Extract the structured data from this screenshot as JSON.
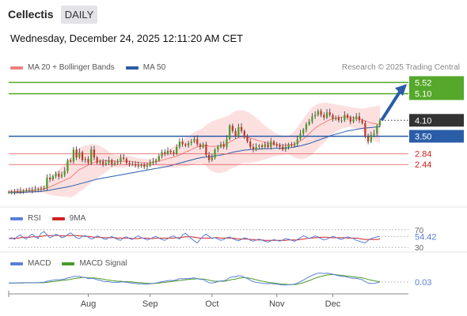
{
  "header": {
    "symbol": "Cellectis",
    "interval": "DAILY",
    "timestamp": "Wednesday, December 24, 2025 12:11:20 AM CET",
    "credit": "Research © 2025 Trading Central"
  },
  "colors": {
    "bollinger": "#f08080",
    "bollinger_fill": "#fbd6d6",
    "ma50": "#2a5da8",
    "resistance": "#55a82a",
    "pivot": "#2a5da8",
    "support": "#e05050",
    "candle_up": "#4a9a2a",
    "candle_down": "#c0392b",
    "rsi": "#5a7fd8",
    "rsi_ma": "#d02020",
    "macd": "#5a7fd8",
    "macd_signal": "#4a9a2a",
    "arrow": "#2a5da8"
  },
  "chart_data": [
    {
      "type": "candlestick",
      "legend": [
        {
          "label": "MA 20 + Bollinger Bands",
          "color": "#f08080"
        },
        {
          "label": "MA 50",
          "color": "#2a5da8"
        }
      ],
      "ylim": [
        1.2,
        5.8
      ],
      "x_ticks": [
        "Aug",
        "Sep",
        "Oct",
        "Nov",
        "Dec"
      ],
      "x_tick_index": [
        27,
        48,
        69,
        91,
        110
      ],
      "last_price": "4.10",
      "levels": [
        {
          "value": 5.52,
          "label": "5.52",
          "kind": "resistance"
        },
        {
          "value": 5.1,
          "label": "5.10",
          "kind": "resistance"
        },
        {
          "value": 3.5,
          "label": "3.50",
          "kind": "pivot"
        },
        {
          "value": 2.84,
          "label": "2.84",
          "kind": "support"
        },
        {
          "value": 2.44,
          "label": "2.44",
          "kind": "support"
        }
      ],
      "close": [
        1.4,
        1.4,
        1.42,
        1.41,
        1.44,
        1.45,
        1.47,
        1.48,
        1.46,
        1.5,
        1.52,
        1.55,
        1.53,
        1.95,
        1.88,
        2.0,
        2.1,
        1.98,
        2.05,
        2.2,
        2.6,
        2.55,
        3.0,
        2.7,
        2.9,
        2.6,
        2.65,
        2.5,
        3.0,
        2.7,
        2.5,
        2.55,
        2.45,
        2.5,
        2.6,
        2.45,
        2.5,
        2.55,
        2.7,
        2.65,
        2.5,
        2.45,
        2.45,
        2.4,
        2.38,
        2.42,
        2.35,
        2.4,
        2.5,
        2.55,
        2.6,
        2.75,
        2.9,
        2.85,
        2.95,
        2.9,
        2.85,
        3.1,
        3.3,
        3.2,
        3.15,
        3.25,
        3.3,
        3.4,
        3.2,
        3.1,
        3.2,
        2.8,
        2.6,
        2.7,
        3.0,
        3.1,
        3.2,
        3.1,
        3.4,
        3.9,
        3.7,
        3.5,
        3.85,
        3.7,
        3.5,
        3.3,
        3.1,
        3.0,
        3.1,
        3.15,
        3.1,
        3.2,
        3.1,
        3.3,
        3.2,
        3.15,
        3.1,
        3.0,
        3.1,
        3.2,
        3.15,
        3.2,
        3.4,
        3.6,
        3.75,
        3.95,
        4.05,
        4.25,
        4.3,
        4.45,
        4.3,
        4.2,
        4.4,
        4.3,
        4.15,
        4.2,
        4.1,
        4.1,
        4.3,
        4.2,
        4.05,
        4.15,
        4.25,
        4.1,
        4.0,
        3.5,
        3.3,
        3.55,
        3.6,
        3.9,
        4.1
      ],
      "ma20": [
        1.42,
        1.42,
        1.42,
        1.43,
        1.43,
        1.44,
        1.45,
        1.46,
        1.47,
        1.48,
        1.49,
        1.5,
        1.52,
        1.55,
        1.6,
        1.65,
        1.7,
        1.75,
        1.8,
        1.85,
        1.9,
        1.95,
        2.05,
        2.15,
        2.25,
        2.3,
        2.36,
        2.42,
        2.48,
        2.52,
        2.55,
        2.57,
        2.58,
        2.58,
        2.58,
        2.58,
        2.57,
        2.55,
        2.56,
        2.56,
        2.56,
        2.56,
        2.55,
        2.53,
        2.52,
        2.51,
        2.51,
        2.5,
        2.51,
        2.52,
        2.54,
        2.57,
        2.6,
        2.63,
        2.66,
        2.69,
        2.72,
        2.75,
        2.8,
        2.85,
        2.9,
        2.95,
        3.0,
        3.05,
        3.1,
        3.12,
        3.14,
        3.15,
        3.13,
        3.12,
        3.12,
        3.13,
        3.15,
        3.18,
        3.22,
        3.28,
        3.35,
        3.4,
        3.45,
        3.48,
        3.48,
        3.46,
        3.43,
        3.4,
        3.37,
        3.33,
        3.3,
        3.27,
        3.24,
        3.22,
        3.2,
        3.18,
        3.17,
        3.16,
        3.16,
        3.17,
        3.18,
        3.2,
        3.25,
        3.32,
        3.4,
        3.5,
        3.6,
        3.7,
        3.8,
        3.88,
        3.95,
        4.0,
        4.07,
        4.12,
        4.16,
        4.18,
        4.2,
        4.22,
        4.23,
        4.23,
        4.22,
        4.2,
        4.18,
        4.16,
        4.12,
        4.08,
        4.04,
        4.0,
        3.98,
        3.96,
        3.95
      ],
      "bb_upper": [
        1.5,
        1.5,
        1.5,
        1.52,
        1.52,
        1.54,
        1.55,
        1.56,
        1.58,
        1.59,
        1.61,
        1.62,
        1.64,
        1.78,
        1.9,
        2.02,
        2.14,
        2.25,
        2.36,
        2.46,
        2.58,
        2.7,
        2.85,
        2.98,
        3.08,
        3.12,
        3.15,
        3.18,
        3.2,
        3.2,
        3.18,
        3.14,
        3.08,
        3.0,
        2.92,
        2.85,
        2.8,
        2.78,
        2.8,
        2.8,
        2.78,
        2.76,
        2.74,
        2.7,
        2.68,
        2.66,
        2.65,
        2.64,
        2.65,
        2.66,
        2.7,
        2.76,
        2.84,
        2.92,
        3.0,
        3.06,
        3.12,
        3.18,
        3.26,
        3.34,
        3.42,
        3.5,
        3.58,
        3.66,
        3.72,
        3.76,
        3.82,
        3.92,
        4.0,
        4.06,
        4.1,
        4.14,
        4.18,
        4.22,
        4.26,
        4.3,
        4.4,
        4.45,
        4.48,
        4.48,
        4.46,
        4.42,
        4.36,
        4.28,
        4.2,
        4.1,
        4.0,
        3.9,
        3.82,
        3.74,
        3.66,
        3.6,
        3.56,
        3.52,
        3.5,
        3.52,
        3.6,
        3.7,
        3.84,
        4.0,
        4.16,
        4.32,
        4.46,
        4.58,
        4.66,
        4.72,
        4.75,
        4.76,
        4.76,
        4.74,
        4.72,
        4.7,
        4.68,
        4.66,
        4.64,
        4.62,
        4.6,
        4.58,
        4.56,
        4.55,
        4.54,
        4.56,
        4.58,
        4.6,
        4.62,
        4.64,
        4.65
      ],
      "bb_lower": [
        1.34,
        1.34,
        1.34,
        1.34,
        1.34,
        1.34,
        1.35,
        1.36,
        1.36,
        1.37,
        1.37,
        1.38,
        1.4,
        1.32,
        1.3,
        1.28,
        1.26,
        1.25,
        1.24,
        1.24,
        1.22,
        1.2,
        1.25,
        1.32,
        1.42,
        1.48,
        1.57,
        1.66,
        1.76,
        1.84,
        1.92,
        2.0,
        2.08,
        2.16,
        2.24,
        2.31,
        2.34,
        2.32,
        2.32,
        2.32,
        2.34,
        2.36,
        2.36,
        2.36,
        2.36,
        2.36,
        2.37,
        2.36,
        2.37,
        2.38,
        2.38,
        2.38,
        2.36,
        2.34,
        2.32,
        2.32,
        2.32,
        2.32,
        2.34,
        2.36,
        2.38,
        2.4,
        2.42,
        2.44,
        2.48,
        2.48,
        2.46,
        2.38,
        2.26,
        2.18,
        2.14,
        2.12,
        2.12,
        2.14,
        2.18,
        2.26,
        2.3,
        2.35,
        2.42,
        2.48,
        2.5,
        2.5,
        2.5,
        2.52,
        2.54,
        2.56,
        2.6,
        2.64,
        2.66,
        2.7,
        2.74,
        2.76,
        2.78,
        2.8,
        2.82,
        2.82,
        2.76,
        2.7,
        2.66,
        2.64,
        2.64,
        2.68,
        2.74,
        2.82,
        2.94,
        3.04,
        3.15,
        3.24,
        3.38,
        3.5,
        3.6,
        3.66,
        3.72,
        3.78,
        3.82,
        3.84,
        3.84,
        3.82,
        3.8,
        3.77,
        3.7,
        3.6,
        3.5,
        3.4,
        3.34,
        3.28,
        3.25
      ],
      "ma50": [
        1.38,
        1.38,
        1.38,
        1.39,
        1.39,
        1.4,
        1.4,
        1.41,
        1.41,
        1.42,
        1.42,
        1.43,
        1.44,
        1.46,
        1.48,
        1.5,
        1.52,
        1.54,
        1.56,
        1.58,
        1.6,
        1.62,
        1.65,
        1.68,
        1.71,
        1.74,
        1.77,
        1.8,
        1.83,
        1.86,
        1.89,
        1.91,
        1.93,
        1.95,
        1.97,
        1.99,
        2.01,
        2.03,
        2.05,
        2.07,
        2.09,
        2.11,
        2.13,
        2.15,
        2.17,
        2.19,
        2.21,
        2.23,
        2.25,
        2.27,
        2.29,
        2.31,
        2.33,
        2.35,
        2.37,
        2.4,
        2.43,
        2.46,
        2.49,
        2.52,
        2.55,
        2.58,
        2.61,
        2.64,
        2.67,
        2.69,
        2.71,
        2.72,
        2.73,
        2.74,
        2.76,
        2.78,
        2.8,
        2.82,
        2.84,
        2.87,
        2.9,
        2.92,
        2.94,
        2.96,
        2.98,
        2.99,
        3.0,
        3.01,
        3.02,
        3.02,
        3.03,
        3.03,
        3.04,
        3.04,
        3.05,
        3.05,
        3.05,
        3.05,
        3.06,
        3.07,
        3.08,
        3.1,
        3.12,
        3.14,
        3.17,
        3.2,
        3.23,
        3.27,
        3.31,
        3.35,
        3.39,
        3.43,
        3.47,
        3.51,
        3.55,
        3.58,
        3.61,
        3.64,
        3.67,
        3.7,
        3.72,
        3.74,
        3.76,
        3.78,
        3.8,
        3.81,
        3.82,
        3.83,
        3.84,
        3.85,
        3.86
      ]
    },
    {
      "type": "line",
      "legend": [
        {
          "label": "RSI",
          "color": "#5a7fd8"
        },
        {
          "label": "9MA",
          "color": "#d02020"
        }
      ],
      "ylim": [
        25,
        75
      ],
      "levels": [
        {
          "value": 70,
          "label": "70"
        },
        {
          "value": 30,
          "label": "30"
        }
      ],
      "last_value": "54.42",
      "rsi": [
        50,
        52,
        48,
        55,
        58,
        52,
        49,
        56,
        60,
        54,
        50,
        62,
        66,
        58,
        52,
        55,
        60,
        57,
        52,
        54,
        59,
        63,
        58,
        52,
        50,
        55,
        57,
        53,
        49,
        51,
        56,
        54,
        50,
        48,
        52,
        55,
        51,
        48,
        46,
        52,
        54,
        50,
        48,
        53,
        56,
        52,
        50,
        47,
        49,
        53,
        55,
        51,
        48,
        46,
        50,
        54,
        56,
        52,
        49,
        58,
        62,
        56,
        50,
        45,
        40,
        48,
        56,
        60,
        55,
        50,
        52,
        49,
        46,
        48,
        52,
        54,
        50,
        47,
        45,
        48,
        52,
        50,
        46,
        44,
        47,
        49,
        46,
        44,
        42,
        45,
        48,
        46,
        44,
        47,
        50,
        49,
        46,
        44,
        48,
        52,
        56,
        54,
        50,
        53,
        56,
        54,
        50,
        47,
        49,
        52,
        55,
        53,
        50,
        48,
        51,
        54,
        52,
        50,
        46,
        44,
        42,
        40,
        46,
        50,
        52,
        54,
        54.42
      ],
      "rsi_ma": [
        50,
        50,
        51,
        51,
        52,
        53,
        53,
        53,
        54,
        54,
        54,
        55,
        56,
        57,
        57,
        57,
        57,
        57,
        56,
        56,
        57,
        57,
        57,
        57,
        56,
        56,
        55,
        55,
        54,
        53,
        53,
        53,
        52,
        52,
        52,
        52,
        52,
        51,
        51,
        51,
        51,
        51,
        50,
        50,
        50,
        51,
        51,
        51,
        50,
        50,
        51,
        51,
        51,
        51,
        51,
        51,
        51,
        52,
        52,
        53,
        54,
        54,
        54,
        53,
        52,
        51,
        51,
        51,
        51,
        51,
        52,
        52,
        51,
        51,
        51,
        51,
        51,
        50,
        49,
        49,
        49,
        49,
        48,
        48,
        47,
        47,
        47,
        46,
        46,
        46,
        46,
        46,
        46,
        46,
        46,
        47,
        47,
        47,
        47,
        48,
        49,
        50,
        51,
        51,
        52,
        52,
        53,
        53,
        53,
        52,
        52,
        52,
        52,
        52,
        52,
        51,
        51,
        51,
        51,
        50,
        49,
        48,
        48,
        48,
        48,
        48,
        49
      ]
    },
    {
      "type": "line",
      "legend": [
        {
          "label": "MACD",
          "color": "#5a7fd8"
        },
        {
          "label": "MACD Signal",
          "color": "#4a9a2a"
        }
      ],
      "ylim": [
        -0.25,
        0.35
      ],
      "last_value": "0.03",
      "macd": [
        0.0,
        0.0,
        0.0,
        0.0,
        0.01,
        0.01,
        0.01,
        0.01,
        0.01,
        0.01,
        0.01,
        0.02,
        0.02,
        0.05,
        0.06,
        0.08,
        0.09,
        0.09,
        0.1,
        0.11,
        0.14,
        0.15,
        0.18,
        0.18,
        0.18,
        0.16,
        0.15,
        0.12,
        0.13,
        0.12,
        0.09,
        0.08,
        0.05,
        0.04,
        0.04,
        0.02,
        0.02,
        0.02,
        0.03,
        0.03,
        0.02,
        0.01,
        0.0,
        -0.01,
        -0.02,
        -0.02,
        -0.03,
        -0.03,
        -0.02,
        -0.01,
        0.0,
        0.02,
        0.04,
        0.05,
        0.07,
        0.07,
        0.07,
        0.09,
        0.12,
        0.12,
        0.12,
        0.12,
        0.13,
        0.14,
        0.12,
        0.1,
        0.1,
        0.05,
        0.01,
        0.0,
        0.02,
        0.04,
        0.06,
        0.06,
        0.09,
        0.15,
        0.17,
        0.17,
        0.2,
        0.19,
        0.16,
        0.12,
        0.08,
        0.04,
        0.02,
        0.01,
        -0.01,
        -0.01,
        -0.02,
        -0.01,
        -0.02,
        -0.03,
        -0.04,
        -0.05,
        -0.05,
        -0.04,
        -0.04,
        -0.03,
        0.0,
        0.04,
        0.08,
        0.13,
        0.17,
        0.21,
        0.24,
        0.27,
        0.27,
        0.26,
        0.27,
        0.26,
        0.24,
        0.22,
        0.2,
        0.18,
        0.18,
        0.16,
        0.14,
        0.13,
        0.13,
        0.11,
        0.09,
        0.04,
        0.0,
        -0.01,
        -0.01,
        0.01,
        0.03
      ],
      "signal": [
        0.0,
        0.0,
        0.0,
        0.0,
        0.0,
        0.0,
        0.01,
        0.01,
        0.01,
        0.01,
        0.01,
        0.01,
        0.01,
        0.02,
        0.03,
        0.04,
        0.05,
        0.06,
        0.07,
        0.08,
        0.09,
        0.1,
        0.12,
        0.13,
        0.14,
        0.15,
        0.15,
        0.14,
        0.14,
        0.14,
        0.13,
        0.12,
        0.11,
        0.09,
        0.08,
        0.07,
        0.06,
        0.05,
        0.05,
        0.04,
        0.04,
        0.03,
        0.03,
        0.02,
        0.01,
        0.01,
        0.0,
        -0.01,
        -0.01,
        -0.01,
        -0.01,
        0.0,
        0.01,
        0.02,
        0.03,
        0.04,
        0.05,
        0.06,
        0.07,
        0.08,
        0.09,
        0.1,
        0.11,
        0.11,
        0.12,
        0.11,
        0.11,
        0.1,
        0.08,
        0.06,
        0.05,
        0.05,
        0.05,
        0.05,
        0.06,
        0.08,
        0.1,
        0.11,
        0.13,
        0.14,
        0.15,
        0.14,
        0.13,
        0.11,
        0.09,
        0.07,
        0.05,
        0.04,
        0.02,
        0.01,
        0.0,
        -0.01,
        -0.02,
        -0.03,
        -0.03,
        -0.04,
        -0.04,
        -0.04,
        -0.03,
        -0.01,
        0.01,
        0.04,
        0.07,
        0.1,
        0.13,
        0.16,
        0.18,
        0.2,
        0.22,
        0.23,
        0.23,
        0.23,
        0.22,
        0.21,
        0.2,
        0.19,
        0.18,
        0.17,
        0.16,
        0.15,
        0.14,
        0.12,
        0.1,
        0.08,
        0.06,
        0.05,
        0.04
      ]
    }
  ]
}
